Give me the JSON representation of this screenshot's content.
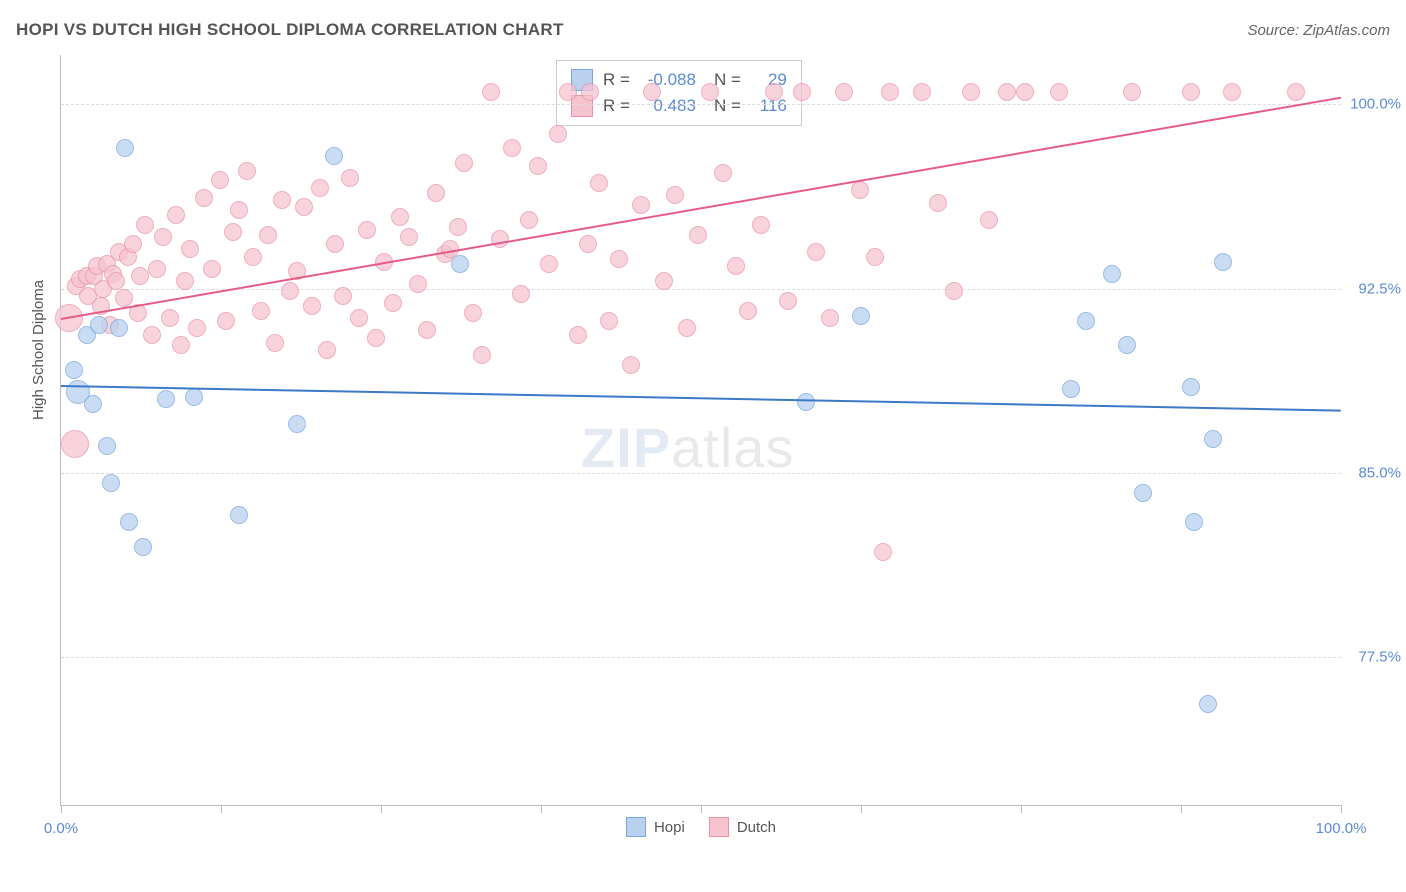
{
  "header": {
    "title": "HOPI VS DUTCH HIGH SCHOOL DIPLOMA CORRELATION CHART",
    "source": "Source: ZipAtlas.com"
  },
  "chart": {
    "type": "scatter",
    "ylabel": "High School Diploma",
    "xlim": [
      0,
      100
    ],
    "ylim": [
      71.5,
      102
    ],
    "xtick_positions": [
      0,
      12.5,
      25,
      37.5,
      50,
      62.5,
      75,
      87.5,
      100
    ],
    "xtick_labels_shown": {
      "0": "0.0%",
      "100": "100.0%"
    },
    "ytick_values": [
      77.5,
      85.0,
      92.5,
      100.0
    ],
    "ytick_labels": [
      "77.5%",
      "85.0%",
      "92.5%",
      "100.0%"
    ],
    "background_color": "#ffffff",
    "grid_color": "#dddddd",
    "axis_color": "#bbbbbb",
    "axis_label_color": "#5b8bd4",
    "watermark": {
      "part1": "ZIP",
      "part2": "atlas",
      "color": "#888888",
      "opacity": 0.18
    },
    "series": {
      "hopi": {
        "label": "Hopi",
        "color_fill": "#b9d1ef",
        "color_stroke": "#7aa7de",
        "opacity": 0.75,
        "marker_radius": 9,
        "R": "-0.088",
        "N": "29",
        "trend": {
          "x1": 0,
          "y1": 88.6,
          "x2": 100,
          "y2": 87.6,
          "color": "#3c7ac8",
          "width": 2
        },
        "points": [
          {
            "x": 1,
            "y": 89.2
          },
          {
            "x": 1.3,
            "y": 88.3,
            "r": 12
          },
          {
            "x": 2,
            "y": 90.6
          },
          {
            "x": 2.5,
            "y": 87.8
          },
          {
            "x": 4.5,
            "y": 90.9
          },
          {
            "x": 5,
            "y": 98.2
          },
          {
            "x": 3,
            "y": 91.0
          },
          {
            "x": 3.6,
            "y": 86.1
          },
          {
            "x": 3.9,
            "y": 84.6
          },
          {
            "x": 5.3,
            "y": 83.0
          },
          {
            "x": 6.4,
            "y": 82.0
          },
          {
            "x": 8.2,
            "y": 88.0
          },
          {
            "x": 10.4,
            "y": 88.1
          },
          {
            "x": 13.9,
            "y": 83.3
          },
          {
            "x": 18.4,
            "y": 87.0
          },
          {
            "x": 21.3,
            "y": 97.9
          },
          {
            "x": 31.2,
            "y": 93.5
          },
          {
            "x": 58.2,
            "y": 87.9
          },
          {
            "x": 62.5,
            "y": 91.4
          },
          {
            "x": 78.9,
            "y": 88.4
          },
          {
            "x": 80.1,
            "y": 91.2
          },
          {
            "x": 82.1,
            "y": 93.1
          },
          {
            "x": 83.3,
            "y": 90.2
          },
          {
            "x": 84.5,
            "y": 84.2
          },
          {
            "x": 88.3,
            "y": 88.5
          },
          {
            "x": 88.5,
            "y": 83.0
          },
          {
            "x": 90.0,
            "y": 86.4
          },
          {
            "x": 89.6,
            "y": 75.6
          },
          {
            "x": 90.8,
            "y": 93.6
          }
        ]
      },
      "dutch": {
        "label": "Dutch",
        "color_fill": "#f6c3cf",
        "color_stroke": "#ea90aa",
        "opacity": 0.72,
        "marker_radius": 9,
        "R": "0.483",
        "N": "116",
        "trend": {
          "x1": 0,
          "y1": 91.3,
          "x2": 100,
          "y2": 100.3,
          "color": "#e55a88",
          "width": 2
        },
        "points": [
          {
            "x": 0.6,
            "y": 91.3,
            "r": 14
          },
          {
            "x": 1.1,
            "y": 86.2,
            "r": 14
          },
          {
            "x": 1.2,
            "y": 92.6
          },
          {
            "x": 1.5,
            "y": 92.9
          },
          {
            "x": 2.0,
            "y": 93.0
          },
          {
            "x": 2.1,
            "y": 92.2
          },
          {
            "x": 2.6,
            "y": 93.0
          },
          {
            "x": 2.8,
            "y": 93.4
          },
          {
            "x": 3.1,
            "y": 91.8
          },
          {
            "x": 3.3,
            "y": 92.5
          },
          {
            "x": 3.6,
            "y": 93.5
          },
          {
            "x": 3.8,
            "y": 91.0
          },
          {
            "x": 4.1,
            "y": 93.1
          },
          {
            "x": 4.3,
            "y": 92.8
          },
          {
            "x": 4.5,
            "y": 94.0
          },
          {
            "x": 4.9,
            "y": 92.1
          },
          {
            "x": 5.2,
            "y": 93.8
          },
          {
            "x": 5.6,
            "y": 94.3
          },
          {
            "x": 6.0,
            "y": 91.5
          },
          {
            "x": 6.2,
            "y": 93.0
          },
          {
            "x": 6.6,
            "y": 95.1
          },
          {
            "x": 7.1,
            "y": 90.6
          },
          {
            "x": 7.5,
            "y": 93.3
          },
          {
            "x": 8.0,
            "y": 94.6
          },
          {
            "x": 8.5,
            "y": 91.3
          },
          {
            "x": 9.0,
            "y": 95.5
          },
          {
            "x": 9.4,
            "y": 90.2
          },
          {
            "x": 9.7,
            "y": 92.8
          },
          {
            "x": 10.1,
            "y": 94.1
          },
          {
            "x": 10.6,
            "y": 90.9
          },
          {
            "x": 11.2,
            "y": 96.2
          },
          {
            "x": 11.8,
            "y": 93.3
          },
          {
            "x": 12.4,
            "y": 96.9
          },
          {
            "x": 12.9,
            "y": 91.2
          },
          {
            "x": 13.4,
            "y": 94.8
          },
          {
            "x": 13.9,
            "y": 95.7
          },
          {
            "x": 14.5,
            "y": 97.3
          },
          {
            "x": 15.0,
            "y": 93.8
          },
          {
            "x": 15.6,
            "y": 91.6
          },
          {
            "x": 16.2,
            "y": 94.7
          },
          {
            "x": 16.7,
            "y": 90.3
          },
          {
            "x": 17.3,
            "y": 96.1
          },
          {
            "x": 17.9,
            "y": 92.4
          },
          {
            "x": 18.4,
            "y": 93.2
          },
          {
            "x": 19.0,
            "y": 95.8
          },
          {
            "x": 19.6,
            "y": 91.8
          },
          {
            "x": 20.2,
            "y": 96.6
          },
          {
            "x": 20.8,
            "y": 90.0
          },
          {
            "x": 21.4,
            "y": 94.3
          },
          {
            "x": 22.0,
            "y": 92.2
          },
          {
            "x": 22.6,
            "y": 97.0
          },
          {
            "x": 23.3,
            "y": 91.3
          },
          {
            "x": 23.9,
            "y": 94.9
          },
          {
            "x": 24.6,
            "y": 90.5
          },
          {
            "x": 25.2,
            "y": 93.6
          },
          {
            "x": 25.9,
            "y": 91.9
          },
          {
            "x": 26.5,
            "y": 95.4
          },
          {
            "x": 27.2,
            "y": 94.6
          },
          {
            "x": 27.9,
            "y": 92.7
          },
          {
            "x": 28.6,
            "y": 90.8
          },
          {
            "x": 29.3,
            "y": 96.4
          },
          {
            "x": 30.0,
            "y": 93.9
          },
          {
            "x": 30.4,
            "y": 94.1
          },
          {
            "x": 31.0,
            "y": 95.0
          },
          {
            "x": 31.5,
            "y": 97.6
          },
          {
            "x": 32.2,
            "y": 91.5
          },
          {
            "x": 32.9,
            "y": 89.8
          },
          {
            "x": 33.6,
            "y": 100.5
          },
          {
            "x": 34.3,
            "y": 94.5
          },
          {
            "x": 35.2,
            "y": 98.2
          },
          {
            "x": 35.9,
            "y": 92.3
          },
          {
            "x": 36.6,
            "y": 95.3
          },
          {
            "x": 37.3,
            "y": 97.5
          },
          {
            "x": 38.1,
            "y": 93.5
          },
          {
            "x": 38.8,
            "y": 98.8
          },
          {
            "x": 39.6,
            "y": 100.5
          },
          {
            "x": 40.4,
            "y": 90.6
          },
          {
            "x": 41.2,
            "y": 94.3
          },
          {
            "x": 41.3,
            "y": 100.5
          },
          {
            "x": 42.0,
            "y": 96.8
          },
          {
            "x": 42.8,
            "y": 91.2
          },
          {
            "x": 43.6,
            "y": 93.7
          },
          {
            "x": 44.5,
            "y": 89.4
          },
          {
            "x": 45.3,
            "y": 95.9
          },
          {
            "x": 46.2,
            "y": 100.5
          },
          {
            "x": 47.1,
            "y": 92.8
          },
          {
            "x": 48.0,
            "y": 96.3
          },
          {
            "x": 48.9,
            "y": 90.9
          },
          {
            "x": 49.8,
            "y": 94.7
          },
          {
            "x": 50.7,
            "y": 100.5
          },
          {
            "x": 51.7,
            "y": 97.2
          },
          {
            "x": 52.7,
            "y": 93.4
          },
          {
            "x": 53.7,
            "y": 91.6
          },
          {
            "x": 54.7,
            "y": 95.1
          },
          {
            "x": 55.7,
            "y": 100.5
          },
          {
            "x": 56.8,
            "y": 92.0
          },
          {
            "x": 57.9,
            "y": 100.5
          },
          {
            "x": 59.0,
            "y": 94.0
          },
          {
            "x": 60.1,
            "y": 91.3
          },
          {
            "x": 61.2,
            "y": 100.5
          },
          {
            "x": 62.4,
            "y": 96.5
          },
          {
            "x": 63.6,
            "y": 93.8
          },
          {
            "x": 64.2,
            "y": 81.8
          },
          {
            "x": 64.8,
            "y": 100.5
          },
          {
            "x": 67.3,
            "y": 100.5
          },
          {
            "x": 68.5,
            "y": 96.0
          },
          {
            "x": 69.8,
            "y": 92.4
          },
          {
            "x": 71.1,
            "y": 100.5
          },
          {
            "x": 72.5,
            "y": 95.3
          },
          {
            "x": 73.9,
            "y": 100.5
          },
          {
            "x": 75.3,
            "y": 100.5
          },
          {
            "x": 78.0,
            "y": 100.5
          },
          {
            "x": 83.7,
            "y": 100.5
          },
          {
            "x": 88.3,
            "y": 100.5
          },
          {
            "x": 91.5,
            "y": 100.5
          },
          {
            "x": 96.5,
            "y": 100.5
          }
        ]
      }
    },
    "legend_bottom": [
      {
        "key": "hopi",
        "label": "Hopi"
      },
      {
        "key": "dutch",
        "label": "Dutch"
      }
    ]
  }
}
